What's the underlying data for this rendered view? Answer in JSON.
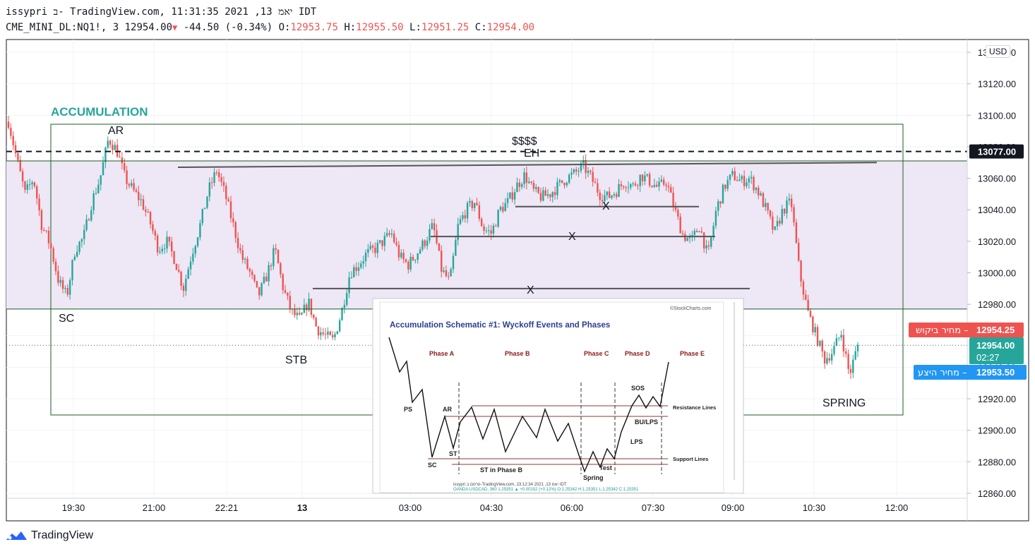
{
  "header": {
    "line1": "issypri ב- TradingView.com, יאמ 13, 2021 11:31:35 IDT",
    "symbol": "CME_MINI_DL:NQ1!, 3",
    "last": "12954.00",
    "change_arrow": "▼",
    "change": "-44.50 (-0.34%)",
    "open_label": "O:",
    "open": "12953.75",
    "high_label": "H:",
    "high": "12955.50",
    "low_label": "L:",
    "low": "12951.25",
    "close_label": "C:",
    "close": "12954.00"
  },
  "currency_button": "USD",
  "brand": "TradingView",
  "colors": {
    "up": "#26a69a",
    "down": "#ef5350",
    "zone_fill": "#ede7f6",
    "box_border": "#1b5e20",
    "accum_title": "#26a69a",
    "bid_badge": "#ef5350",
    "ask_badge": "#2196f3",
    "last_badge": "#26a69a"
  },
  "chart_data": {
    "type": "candlestick",
    "y_axis": {
      "min": 12860,
      "max": 13140,
      "ticks": [
        "12860.00",
        "12880.00",
        "12900.00",
        "12920.00",
        "12940.00",
        "12960.00",
        "12980.00",
        "13000.00",
        "13020.00",
        "13040.00",
        "13060.00",
        "13080.00",
        "13100.00",
        "13120.00",
        "13140.00"
      ]
    },
    "x_axis": {
      "ticks": [
        "19:30",
        "21:00",
        "22:21",
        "13",
        "03:00",
        "04:30",
        "06:00",
        "07:30",
        "09:00",
        "10:30",
        "12:00"
      ]
    },
    "price_labels": {
      "dashed_level": "13077.00",
      "bid_label": "מחיר ביקוש",
      "bid": "12954.25",
      "last": "12954.00",
      "countdown": "02:27",
      "ask_label": "מחיר היצע",
      "ask": "12953.50"
    },
    "annotations": {
      "title": "ACCUMULATION",
      "ar": "AR",
      "sc": "SC",
      "stb": "STB",
      "spring": "SPRING",
      "dollars": "$$$$",
      "eh": "EH",
      "x_mark": "X"
    },
    "zone": {
      "top": 13071,
      "bottom": 12977
    },
    "series": [
      {
        "name": "",
        "close_path": [
          13096,
          13072,
          13050,
          13060,
          13030,
          13018,
          12995,
          12985,
          13015,
          13022,
          13045,
          13060,
          13085,
          13078,
          13060,
          13052,
          13045,
          13032,
          13015,
          13020,
          13008,
          12990,
          13012,
          13030,
          13052,
          13065,
          13050,
          13030,
          13010,
          13000,
          12985,
          12998,
          13015,
          12990,
          12975,
          12970,
          12982,
          12965,
          12960,
          12957,
          12975,
          13000,
          13005,
          13012,
          13015,
          13020,
          13025,
          13010,
          13005,
          13012,
          13020,
          13030,
          13002,
          12994,
          13030,
          13040,
          13045,
          13028,
          13025,
          13040,
          13045,
          13055,
          13062,
          13052,
          13048,
          13050,
          13055,
          13060,
          13063,
          13068,
          13060,
          13050,
          13048,
          13052,
          13058,
          13055,
          13062,
          13058,
          13054,
          13058,
          13040,
          13024,
          13020,
          13030,
          13010,
          13040,
          13055,
          13062,
          13058,
          13060,
          13052,
          13040,
          13025,
          13040,
          13045,
          13000,
          12975,
          12960,
          12945,
          12950,
          12962,
          12935,
          12954
        ]
      }
    ],
    "levels": [
      {
        "name": "upper trend line",
        "from": 13067,
        "to": 13070
      },
      {
        "name": "range line 1",
        "value": 13042
      },
      {
        "name": "range line 2",
        "value": 13023
      },
      {
        "name": "range line 3",
        "value": 12990
      }
    ],
    "grid": true
  },
  "inset": {
    "title": "Accumulation Schematic #1: Wyckoff Events and Phases",
    "credit": "©StockCharts.com",
    "phases": [
      "Phase A",
      "Phase B",
      "Phase C",
      "Phase D",
      "Phase E"
    ],
    "labels": {
      "ps": "PS",
      "ar": "AR",
      "st": "ST",
      "sc": "SC",
      "st_phase_b": "ST in Phase B",
      "spring": "Spring",
      "test": "Test",
      "lps": "LPS",
      "bu_lps": "BU/LPS",
      "sos": "SOS",
      "resistance": "Resistance Lines",
      "support": "Support Lines"
    },
    "footer1": "issypri פרסם ב-TradingView.com, יאמ 13, 2021 23:12:34 IDT",
    "footer2": "OANDA:USDCAD, 360 1.25351 ▲ +0.00152 (+0.12%) O:1.25342 H:1.25351 L:1.25342 C:1.25351"
  }
}
